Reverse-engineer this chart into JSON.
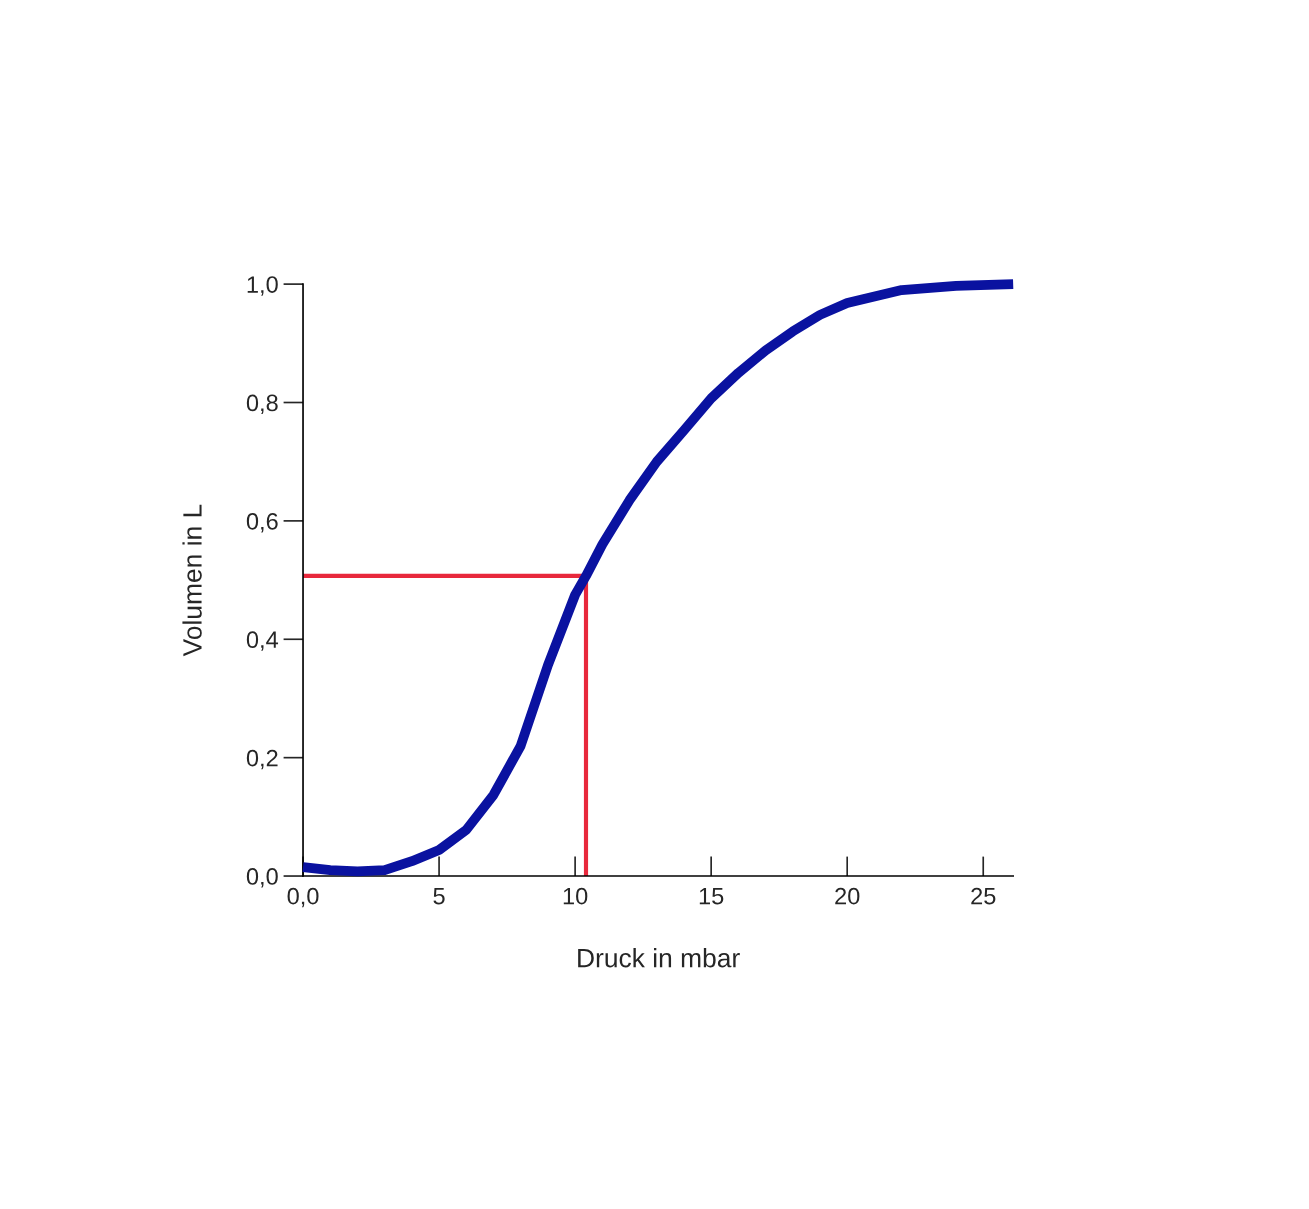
{
  "chart_data": {
    "type": "line",
    "xlabel": "Druck in mbar",
    "ylabel": "Volumen in L",
    "xlim": [
      0,
      26.1
    ],
    "ylim": [
      0,
      1.0
    ],
    "xticks": [
      {
        "value": 0,
        "label": "0,0"
      },
      5,
      10,
      15,
      20,
      25
    ],
    "yticks": [
      {
        "value": 0,
        "label": "0,0"
      },
      {
        "value": 0.2,
        "label": "0,2"
      },
      {
        "value": 0.4,
        "label": "0,4"
      },
      {
        "value": 0.6,
        "label": "0,6"
      },
      {
        "value": 0.8,
        "label": "0,8"
      },
      {
        "value": 1.0,
        "label": "1,0"
      }
    ],
    "series": [
      {
        "color": "#0a12a0",
        "x": [
          0,
          1,
          2,
          3,
          4,
          5,
          6,
          7,
          8,
          9,
          10,
          10.4,
          11,
          12,
          13,
          14,
          15,
          16,
          17,
          18,
          19,
          20,
          22,
          24,
          26.1
        ],
        "values": [
          0.015,
          0.01,
          0.008,
          0.01,
          0.025,
          0.044,
          0.078,
          0.137,
          0.22,
          0.356,
          0.475,
          0.507,
          0.56,
          0.635,
          0.7,
          0.753,
          0.807,
          0.85,
          0.888,
          0.92,
          0.948,
          0.968,
          0.99,
          0.997,
          1.0
        ]
      },
      {
        "color": "#e8283c",
        "x": [
          0,
          10.4,
          10.4
        ],
        "values": [
          0.507,
          0.507,
          0
        ]
      }
    ]
  }
}
